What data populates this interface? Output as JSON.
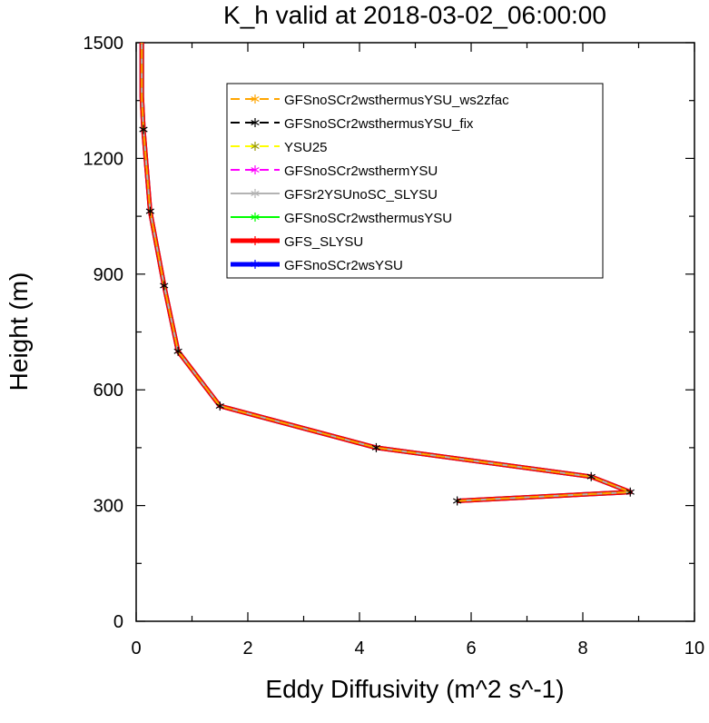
{
  "chart_data": {
    "type": "line",
    "title": "K_h valid at 2018-03-02_06:00:00",
    "xlabel": "Eddy Diffusivity (m^2 s^-1)",
    "ylabel": "Height (m)",
    "xlim": [
      0,
      10
    ],
    "ylim": [
      0,
      1500
    ],
    "xticks": [
      0,
      2,
      4,
      6,
      8,
      10
    ],
    "yticks": [
      0,
      300,
      600,
      900,
      1200,
      1500
    ],
    "x_tick_labels": [
      "0",
      "2",
      "4",
      "6",
      "8",
      "10"
    ],
    "y_tick_labels": [
      "0",
      "300",
      "600",
      "900",
      "1200",
      "1500"
    ],
    "grid": false,
    "legend_position": "top-right",
    "series": [
      {
        "name": "GFSnoSCr2wsYSU",
        "color": "#0000ff",
        "dash": "solid",
        "width": 5
      },
      {
        "name": "GFS_SLYSU",
        "color": "#ff0000",
        "dash": "solid",
        "width": 5
      },
      {
        "name": "GFSnoSCr2wsthermusYSU",
        "color": "#00ff00",
        "dash": "solid",
        "width": 2
      },
      {
        "name": "GFSr2YSUnoSC_SLYSU",
        "color": "#b3b3b3",
        "dash": "solid",
        "width": 2
      },
      {
        "name": "GFSnoSCr2wsthermYSU",
        "color": "#ff00ff",
        "dash": "dashed",
        "width": 2
      },
      {
        "name": "YSU25",
        "color": "#ffff00",
        "dash": "dashed",
        "width": 2
      },
      {
        "name": "GFSnoSCr2wsthermusYSU_fix",
        "color": "#000000",
        "dash": "dashed",
        "width": 2
      },
      {
        "name": "GFSnoSCr2wsthermusYSU_ws2zfac",
        "color": "#ffa500",
        "dash": "dashed",
        "width": 2
      }
    ],
    "shared_profile": {
      "x": [
        5.75,
        8.85,
        8.15,
        4.3,
        1.5,
        0.75,
        0.5,
        0.25,
        0.13,
        0.1,
        0.1,
        0.1
      ],
      "y": [
        312,
        335,
        375,
        450,
        558,
        700,
        870,
        1063,
        1275,
        1360,
        1430,
        1500
      ]
    },
    "marker_indices": [
      0,
      1,
      2,
      3,
      4,
      5,
      6,
      7,
      8
    ]
  }
}
